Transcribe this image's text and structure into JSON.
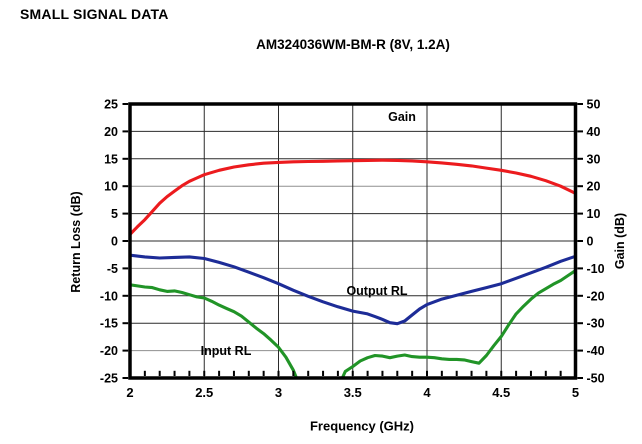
{
  "header": {
    "title": "SMALL SIGNAL DATA"
  },
  "chart_data": {
    "type": "line",
    "title": "AM324036WM-BM-R (8V, 1.2A)",
    "xlabel": "Frequency (GHz)",
    "ylabel_left": "Return Loss (dB)",
    "ylabel_right": "Gain (dB)",
    "x_range": [
      2,
      5
    ],
    "x_major_ticks": [
      2,
      2.5,
      3,
      3.5,
      4,
      4.5,
      5
    ],
    "x_minor_step": 0.1,
    "left_axis": {
      "range": [
        -25,
        25
      ],
      "ticks": [
        25,
        20,
        15,
        10,
        5,
        0,
        -5,
        -10,
        -15,
        -20,
        -25
      ]
    },
    "right_axis": {
      "range": [
        -50,
        50
      ],
      "ticks": [
        50,
        40,
        30,
        20,
        10,
        0,
        -10,
        -20,
        -30,
        -40,
        -50
      ]
    },
    "grid": true,
    "legend_position": "in-plot-labels",
    "series": [
      {
        "name": "Gain",
        "axis": "right",
        "color": "#ec1b1e",
        "points": [
          [
            2.0,
            2.4
          ],
          [
            2.05,
            5.2
          ],
          [
            2.1,
            7.8
          ],
          [
            2.15,
            10.8
          ],
          [
            2.2,
            13.8
          ],
          [
            2.25,
            16.2
          ],
          [
            2.3,
            18.2
          ],
          [
            2.35,
            20.2
          ],
          [
            2.4,
            21.8
          ],
          [
            2.45,
            23.0
          ],
          [
            2.5,
            24.2
          ],
          [
            2.6,
            25.8
          ],
          [
            2.7,
            27.0
          ],
          [
            2.8,
            27.8
          ],
          [
            2.9,
            28.4
          ],
          [
            3.0,
            28.7
          ],
          [
            3.1,
            28.9
          ],
          [
            3.2,
            29.0
          ],
          [
            3.3,
            29.1
          ],
          [
            3.4,
            29.2
          ],
          [
            3.5,
            29.3
          ],
          [
            3.6,
            29.4
          ],
          [
            3.7,
            29.5
          ],
          [
            3.8,
            29.4
          ],
          [
            3.9,
            29.2
          ],
          [
            4.0,
            28.9
          ],
          [
            4.1,
            28.5
          ],
          [
            4.2,
            28.0
          ],
          [
            4.3,
            27.4
          ],
          [
            4.4,
            26.6
          ],
          [
            4.5,
            25.8
          ],
          [
            4.6,
            24.8
          ],
          [
            4.7,
            23.6
          ],
          [
            4.8,
            22.0
          ],
          [
            4.9,
            20.0
          ],
          [
            5.0,
            17.4
          ]
        ]
      },
      {
        "name": "Output RL",
        "axis": "left",
        "color": "#1d2c97",
        "points": [
          [
            2.0,
            -2.6
          ],
          [
            2.1,
            -2.9
          ],
          [
            2.2,
            -3.1
          ],
          [
            2.3,
            -3.0
          ],
          [
            2.4,
            -2.9
          ],
          [
            2.5,
            -3.2
          ],
          [
            2.6,
            -3.9
          ],
          [
            2.7,
            -4.7
          ],
          [
            2.8,
            -5.7
          ],
          [
            2.9,
            -6.7
          ],
          [
            3.0,
            -7.8
          ],
          [
            3.1,
            -9.0
          ],
          [
            3.2,
            -10.1
          ],
          [
            3.3,
            -11.1
          ],
          [
            3.4,
            -12.0
          ],
          [
            3.5,
            -12.8
          ],
          [
            3.6,
            -13.3
          ],
          [
            3.65,
            -13.8
          ],
          [
            3.7,
            -14.3
          ],
          [
            3.75,
            -14.9
          ],
          [
            3.8,
            -15.1
          ],
          [
            3.85,
            -14.6
          ],
          [
            3.9,
            -13.5
          ],
          [
            3.95,
            -12.4
          ],
          [
            4.0,
            -11.6
          ],
          [
            4.1,
            -10.6
          ],
          [
            4.2,
            -9.9
          ],
          [
            4.3,
            -9.2
          ],
          [
            4.4,
            -8.5
          ],
          [
            4.5,
            -7.8
          ],
          [
            4.6,
            -6.8
          ],
          [
            4.7,
            -5.8
          ],
          [
            4.8,
            -4.8
          ],
          [
            4.9,
            -3.7
          ],
          [
            5.0,
            -2.8
          ]
        ]
      },
      {
        "name": "Input RL",
        "axis": "left",
        "color": "#219427",
        "points": [
          [
            2.0,
            -8.0
          ],
          [
            2.05,
            -8.2
          ],
          [
            2.1,
            -8.4
          ],
          [
            2.15,
            -8.5
          ],
          [
            2.2,
            -8.9
          ],
          [
            2.25,
            -9.2
          ],
          [
            2.3,
            -9.1
          ],
          [
            2.35,
            -9.4
          ],
          [
            2.4,
            -9.8
          ],
          [
            2.45,
            -10.2
          ],
          [
            2.5,
            -10.4
          ],
          [
            2.55,
            -11.0
          ],
          [
            2.6,
            -11.7
          ],
          [
            2.65,
            -12.3
          ],
          [
            2.7,
            -12.9
          ],
          [
            2.75,
            -13.7
          ],
          [
            2.8,
            -14.8
          ],
          [
            2.85,
            -15.9
          ],
          [
            2.9,
            -16.9
          ],
          [
            2.95,
            -18.1
          ],
          [
            3.0,
            -19.4
          ],
          [
            3.05,
            -21.2
          ],
          [
            3.1,
            -23.6
          ],
          [
            3.13,
            -25.6
          ],
          [
            3.27,
            null
          ],
          [
            3.42,
            -25.6
          ],
          [
            3.45,
            -23.8
          ],
          [
            3.5,
            -22.9
          ],
          [
            3.55,
            -21.9
          ],
          [
            3.6,
            -21.3
          ],
          [
            3.65,
            -20.9
          ],
          [
            3.7,
            -21.0
          ],
          [
            3.75,
            -21.3
          ],
          [
            3.8,
            -21.0
          ],
          [
            3.85,
            -20.8
          ],
          [
            3.9,
            -21.1
          ],
          [
            3.95,
            -21.2
          ],
          [
            4.0,
            -21.2
          ],
          [
            4.05,
            -21.3
          ],
          [
            4.1,
            -21.5
          ],
          [
            4.15,
            -21.6
          ],
          [
            4.2,
            -21.6
          ],
          [
            4.25,
            -21.7
          ],
          [
            4.3,
            -22.0
          ],
          [
            4.35,
            -22.3
          ],
          [
            4.4,
            -20.9
          ],
          [
            4.45,
            -19.1
          ],
          [
            4.5,
            -17.4
          ],
          [
            4.55,
            -15.3
          ],
          [
            4.6,
            -13.3
          ],
          [
            4.65,
            -11.9
          ],
          [
            4.7,
            -10.6
          ],
          [
            4.75,
            -9.5
          ],
          [
            4.8,
            -8.7
          ],
          [
            4.85,
            -7.9
          ],
          [
            4.9,
            -7.2
          ],
          [
            4.95,
            -6.3
          ],
          [
            5.0,
            -5.4
          ]
        ]
      }
    ],
    "colors": {
      "gain_line": "#ec1b1e",
      "output_rl_line": "#1d2c97",
      "input_rl_line": "#219427",
      "grid_dark": "#2b2b2b",
      "grid_gray": "#8f8f8f",
      "axis_border": "#000000"
    }
  }
}
